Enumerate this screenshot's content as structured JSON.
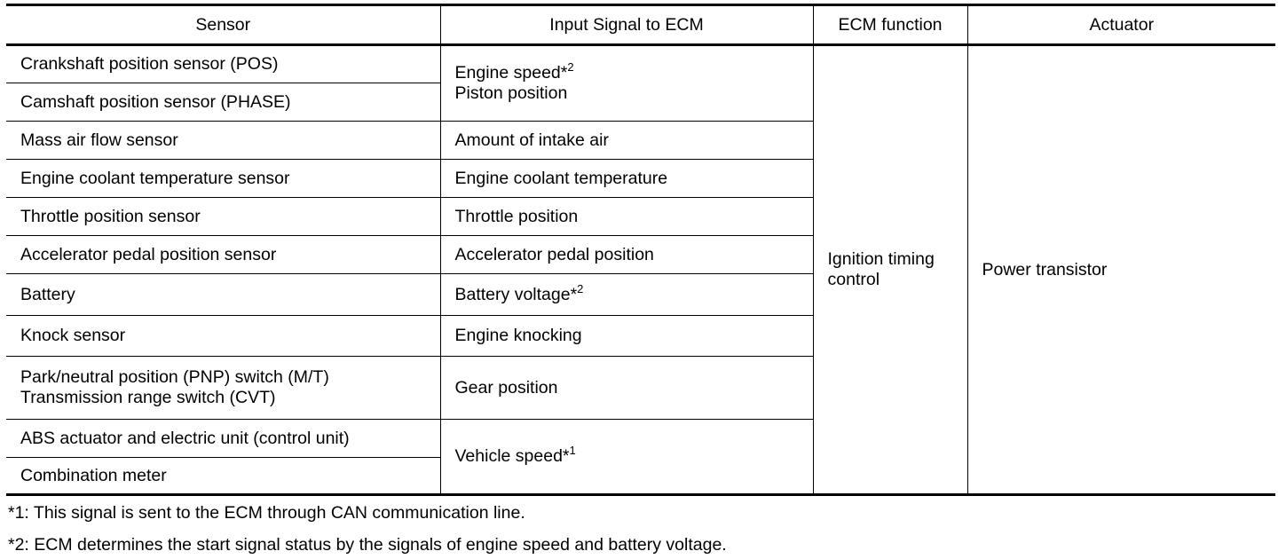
{
  "headers": [
    "Sensor",
    "Input Signal to ECM",
    "ECM function",
    "Actuator"
  ],
  "sensors": [
    "Crankshaft position sensor (POS)",
    "Camshaft position sensor (PHASE)",
    "Mass air flow sensor",
    "Engine coolant temperature sensor",
    "Throttle position sensor",
    "Accelerator pedal position sensor",
    "Battery",
    "Knock sensor",
    "Park/neutral position (PNP) switch (M/T)",
    "Transmission range switch (CVT)",
    "ABS actuator and electric unit (control unit)",
    "Combination meter"
  ],
  "signals": {
    "engine_speed": "Engine speed*",
    "engine_speed_sup": "2",
    "piston": "Piston position",
    "intake_air": "Amount of intake air",
    "coolant": "Engine coolant temperature",
    "throttle": "Throttle position",
    "accel": "Accelerator pedal position",
    "battery": "Battery voltage*",
    "battery_sup": "2",
    "knock": "Engine knocking",
    "gear": "Gear position",
    "vehicle_speed": "Vehicle speed*",
    "vehicle_speed_sup": "1"
  },
  "ecm_function": {
    "line1": "Ignition timing",
    "line2": "control"
  },
  "actuator": "Power transistor",
  "footnotes": [
    "*1: This signal is sent to the ECM through CAN communication line.",
    "*2: ECM determines the start signal status by the signals of engine speed and battery voltage."
  ]
}
